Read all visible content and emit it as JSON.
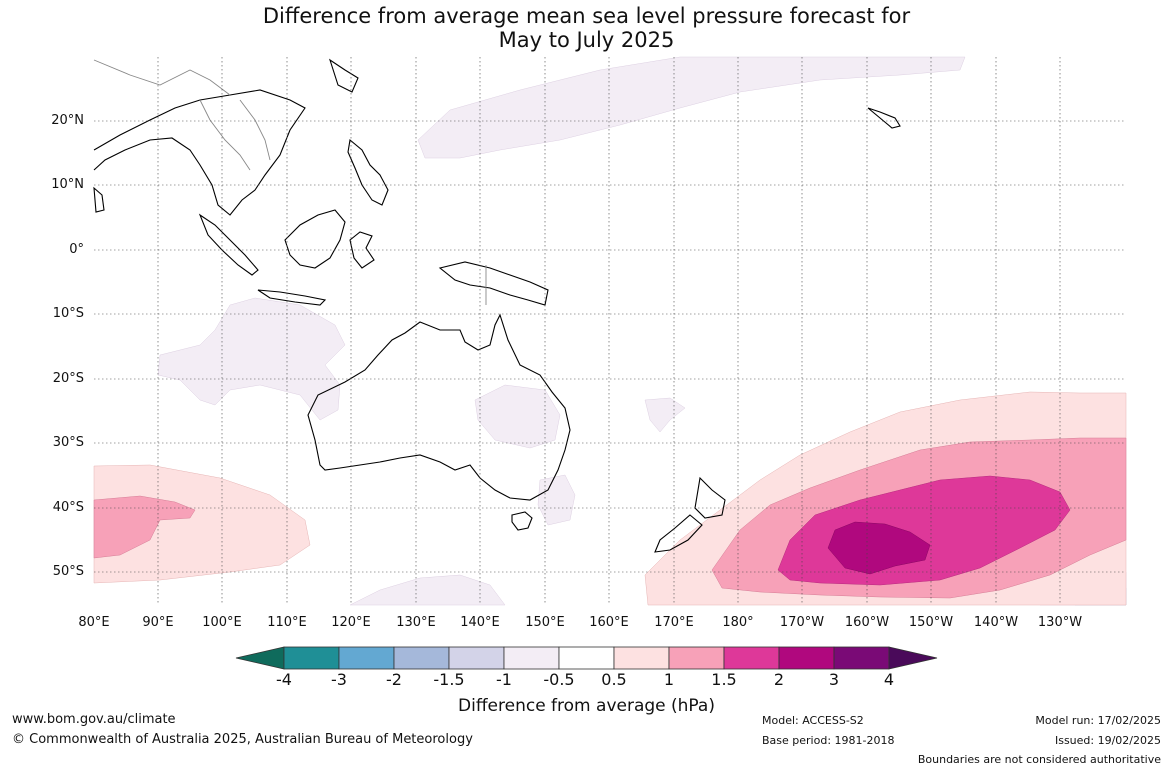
{
  "title_line1": "Difference from average mean sea level pressure forecast for",
  "title_line2": "May to July 2025",
  "lat_labels": [
    "20°N",
    "10°N",
    "0°",
    "10°S",
    "20°S",
    "30°S",
    "40°S",
    "50°S"
  ],
  "lon_labels": [
    "80°E",
    "90°E",
    "100°E",
    "110°E",
    "120°E",
    "130°E",
    "140°E",
    "150°E",
    "160°E",
    "170°E",
    "180°",
    "170°W",
    "160°W",
    "150°W",
    "140°W",
    "130°W"
  ],
  "colorbar": {
    "labels": [
      "-4",
      "-3",
      "-2",
      "-1.5",
      "-1",
      "-0.5",
      "0.5",
      "1",
      "1.5",
      "2",
      "3",
      "4"
    ],
    "colors": [
      "#0f6b5c",
      "#1f8f96",
      "#63a8d2",
      "#a5b8da",
      "#d3d3e8",
      "#f3edf5",
      "#ffffff",
      "#fde1e1",
      "#f7a1b8",
      "#de3899",
      "#b0087e",
      "#7a0a76",
      "#4a0a5a"
    ],
    "title": "Difference from average (hPa)"
  },
  "footer": {
    "website": "www.bom.gov.au/climate",
    "copyright": "© Commonwealth of Australia 2025, Australian Bureau of Meteorology",
    "model": "Model: ACCESS-S2",
    "base_period": "Base period: 1981-2018",
    "model_run": "Model run: 17/02/2025",
    "issued": "Issued: 19/02/2025",
    "disclaimer": "Boundaries are not considered authoritative"
  }
}
